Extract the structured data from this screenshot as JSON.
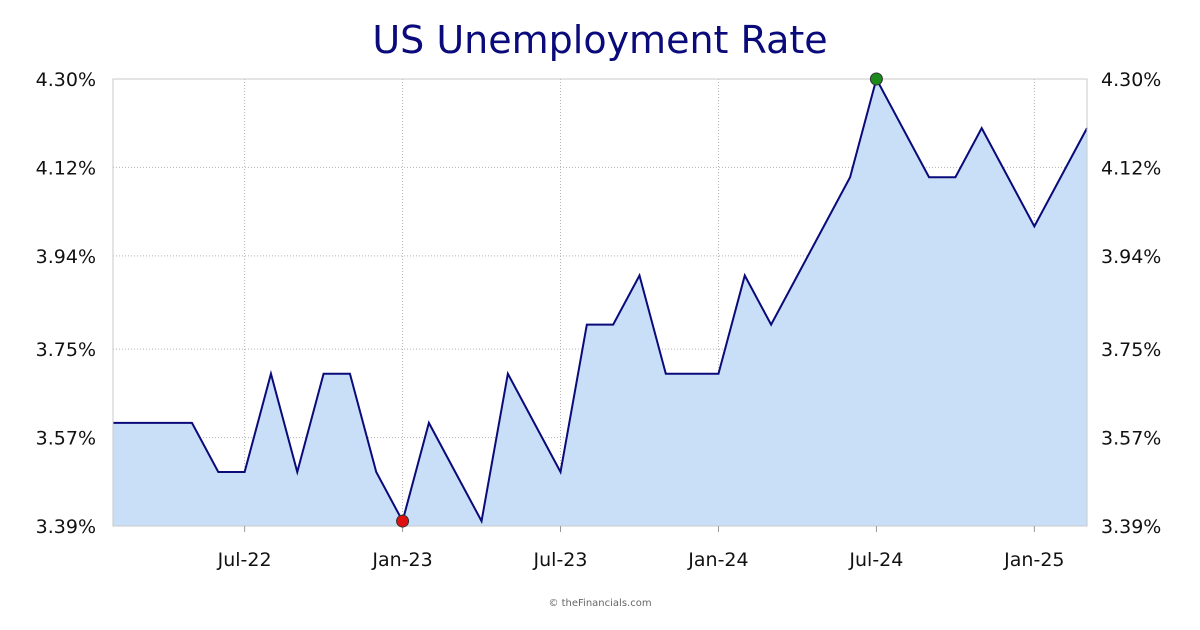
{
  "chart_data": {
    "type": "area",
    "title": "US Unemployment Rate",
    "x": [
      "2022-02",
      "2022-03",
      "2022-04",
      "2022-05",
      "2022-06",
      "2022-07",
      "2022-08",
      "2022-09",
      "2022-10",
      "2022-11",
      "2022-12",
      "2023-01",
      "2023-02",
      "2023-03",
      "2023-04",
      "2023-05",
      "2023-06",
      "2023-07",
      "2023-08",
      "2023-09",
      "2023-10",
      "2023-11",
      "2023-12",
      "2024-01",
      "2024-02",
      "2024-03",
      "2024-04",
      "2024-05",
      "2024-06",
      "2024-07",
      "2024-08",
      "2024-09",
      "2024-10",
      "2024-11",
      "2024-12",
      "2025-01",
      "2025-02",
      "2025-03"
    ],
    "values": [
      3.6,
      3.6,
      3.6,
      3.6,
      3.5,
      3.5,
      3.7,
      3.5,
      3.7,
      3.7,
      3.5,
      3.4,
      3.6,
      3.5,
      3.4,
      3.7,
      3.6,
      3.5,
      3.8,
      3.8,
      3.9,
      3.7,
      3.7,
      3.7,
      3.9,
      3.8,
      3.9,
      4.0,
      4.1,
      4.3,
      4.2,
      4.1,
      4.1,
      4.2,
      4.1,
      4.0,
      4.1,
      4.2
    ],
    "xticks": [
      {
        "date": "2022-07",
        "label": "Jul-22"
      },
      {
        "date": "2023-01",
        "label": "Jan-23"
      },
      {
        "date": "2023-07",
        "label": "Jul-23"
      },
      {
        "date": "2024-01",
        "label": "Jan-24"
      },
      {
        "date": "2024-07",
        "label": "Jul-24"
      },
      {
        "date": "2025-01",
        "label": "Jan-25"
      }
    ],
    "yticks": [
      {
        "value": 3.39,
        "label": "3.39%"
      },
      {
        "value": 3.57,
        "label": "3.57%"
      },
      {
        "value": 3.75,
        "label": "3.75%"
      },
      {
        "value": 3.94,
        "label": "3.94%"
      },
      {
        "value": 4.12,
        "label": "4.12%"
      },
      {
        "value": 4.3,
        "label": "4.30%"
      }
    ],
    "ylim": [
      3.39,
      4.3
    ],
    "xlim": [
      "2022-02",
      "2025-03"
    ],
    "markers": [
      {
        "x": "2023-01",
        "y": 3.4,
        "color": "#e01010"
      },
      {
        "x": "2024-07",
        "y": 4.3,
        "color": "#1a8a1a"
      }
    ],
    "grid": true,
    "colors": {
      "line": "#0a0a7a",
      "fill": "#c9dff7"
    }
  },
  "credit": "© theFinancials.com"
}
